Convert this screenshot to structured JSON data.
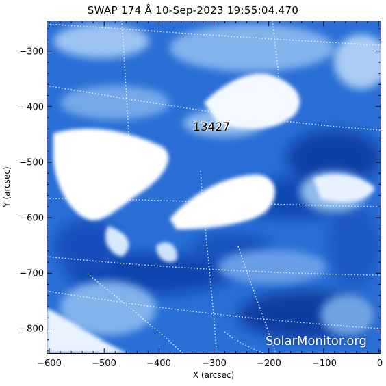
{
  "header": {
    "title": "SWAP 174 Å 10-Sep-2023 19:55:04.470"
  },
  "axes": {
    "xlabel": "X (arcsec)",
    "ylabel": "Y (arcsec)",
    "x_ticks": [
      "−600",
      "−500",
      "−400",
      "−300",
      "−200",
      "−100",
      "0"
    ],
    "y_ticks": [
      "−300",
      "−400",
      "−500",
      "−600",
      "−700",
      "−800"
    ],
    "x_range": [
      -605,
      5
    ],
    "y_range": [
      -245,
      -845
    ]
  },
  "annotations": {
    "active_region": "13427"
  },
  "watermark": {
    "text": "SolarMonitor.org"
  },
  "colors": {
    "background_blue": "#1a5fd0",
    "dark_blue": "#0b3a9a",
    "bright_region": "#ffffff",
    "grid_line": "#ffffff"
  }
}
